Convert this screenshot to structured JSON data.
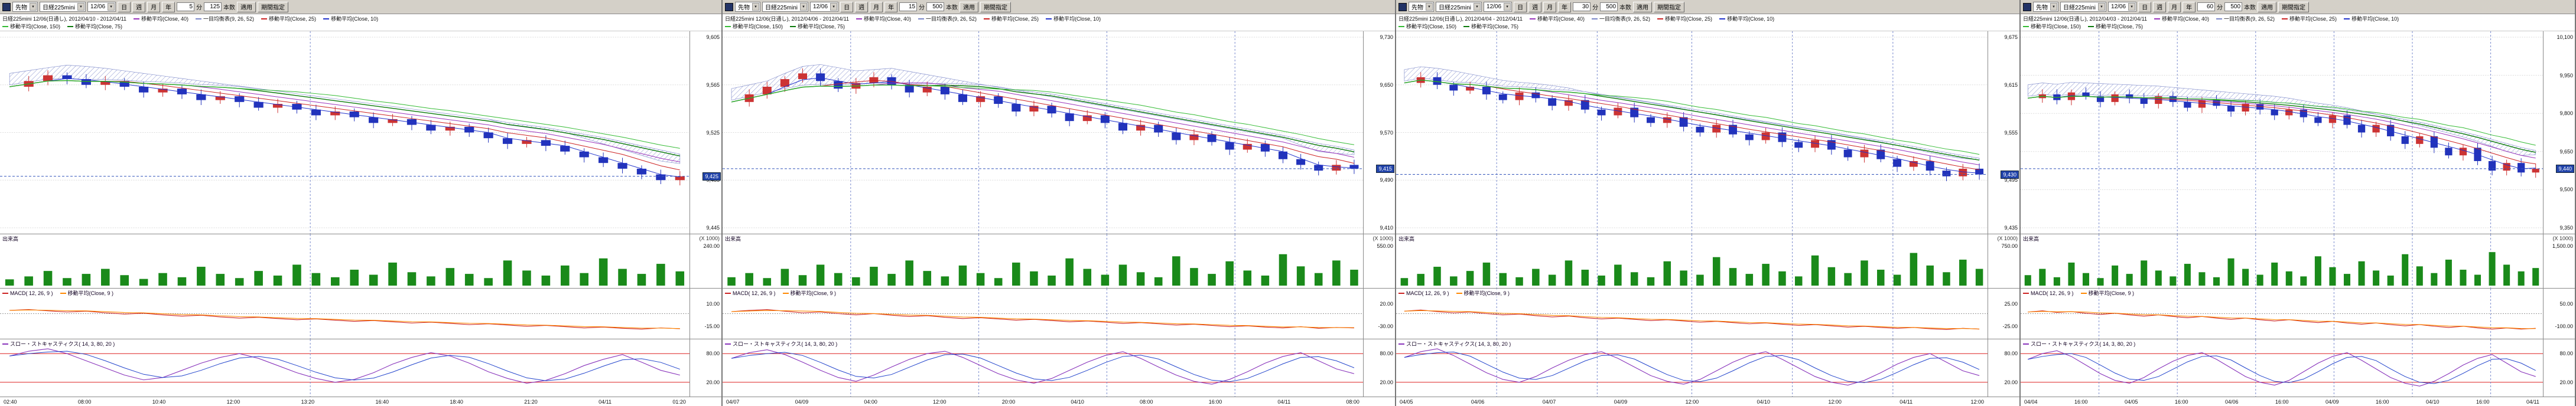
{
  "toolbar_labels": {
    "day": "日",
    "week": "週",
    "month": "月",
    "year": "年",
    "minute_suffix": "分",
    "bars_suffix": "本数",
    "apply": "適用",
    "range": "期間指定"
  },
  "colors": {
    "up_candle": "#cc3333",
    "down_candle": "#2233bb",
    "ma_short": "#2233cc",
    "ma_mid": "#cc2222",
    "ma_xlong": "#9933bb",
    "ma_long": "#0b7a0b",
    "ma_long2": "#33bb33",
    "cloud": "#7a86c8",
    "volume_bar": "#1a8a1a",
    "macd_line": "#cc2222",
    "macd_signal": "#ff8800",
    "stoch_k": "#8833bb",
    "stoch_d": "#2244cc",
    "threshold": "#dd2222",
    "grid": "#c8c8c8",
    "divider": "#7788cc",
    "last_price_line": "#3355bb",
    "badge_bg": "#2244aa",
    "badge_text": "#ffffff"
  },
  "panels": [
    {
      "toolbar": {
        "category": "先物",
        "instrument": "日経225mini",
        "contract": "12/06",
        "minute_value": "5",
        "bars_value": "125"
      },
      "legend_line1": [
        {
          "text": "日経225mini 12/06(日通し), 2012/04/10 - 2012/04/11",
          "color": null
        },
        {
          "text": "移動平均(Close, 40)",
          "color": "#9933bb"
        },
        {
          "text": "一目均衡表(9, 26, 52)",
          "color": "#7a86c8"
        },
        {
          "text": "移動平均(Close, 25)",
          "color": "#cc2222"
        },
        {
          "text": "移動平均(Close, 10)",
          "color": "#2233cc"
        }
      ],
      "legend_line2": [
        {
          "text": "移動平均(Close, 150)",
          "color": "#33bb33"
        },
        {
          "text": "移動平均(Close, 75)",
          "color": "#0b7a0b"
        }
      ],
      "sections": {
        "volume_label": "出来高"
      },
      "macd_labels": [
        {
          "text": "MACD( 12, 26, 9 )",
          "color": "#cc2222"
        },
        {
          "text": "移動平均(Close, 9 )",
          "color": "#ff8800"
        }
      ],
      "stoch_labels": [
        {
          "text": "スロー・ストキャスティクス( 14, 3, 80, 20 )",
          "color": "#8833bb"
        }
      ],
      "price_axis": {
        "ticks": [
          "9,605",
          "9,565",
          "9,525",
          "9,485",
          "9,445"
        ],
        "badge": "9,425"
      },
      "volume_axis": {
        "unit": "(X 1000)",
        "ticks": [
          "240.00"
        ]
      },
      "macd_axis": {
        "ticks": [
          "10.00",
          "-15.00"
        ]
      },
      "stoch_axis": {
        "ticks": [
          "80.00",
          "20.00"
        ]
      },
      "x_labels": [
        "02:40",
        "08:00",
        "10:40",
        "12:00",
        "13:20",
        "16:40",
        "18:40",
        "21:20",
        "04/11",
        "01:20"
      ],
      "day_dividers": [
        0.45
      ],
      "series": {
        "close": [
          74,
          77,
          80,
          78,
          75,
          77,
          74,
          71,
          73,
          70,
          67,
          69,
          66,
          63,
          65,
          62,
          59,
          61,
          58,
          55,
          57,
          54,
          51,
          53,
          50,
          47,
          44,
          46,
          43,
          40,
          37,
          34,
          31,
          28,
          25,
          27
        ],
        "volume": [
          15,
          22,
          35,
          18,
          28,
          40,
          25,
          16,
          30,
          20,
          45,
          28,
          18,
          35,
          24,
          50,
          30,
          20,
          38,
          26,
          55,
          32,
          22,
          42,
          28,
          18,
          60,
          36,
          24,
          48,
          30,
          65,
          40,
          28,
          52,
          34
        ],
        "macd": [
          58,
          60,
          57,
          54,
          56,
          52,
          49,
          51,
          47,
          44,
          46,
          42,
          39,
          41,
          38,
          35,
          37,
          34,
          31,
          33,
          30,
          27,
          29,
          26,
          23,
          25,
          22,
          19,
          21,
          18,
          15,
          17,
          14,
          12,
          15,
          13
        ],
        "stoch": [
          75,
          85,
          90,
          80,
          65,
          50,
          35,
          25,
          30,
          45,
          60,
          72,
          80,
          70,
          55,
          40,
          28,
          20,
          26,
          40,
          58,
          72,
          82,
          75,
          60,
          42,
          28,
          18,
          24,
          38,
          55,
          68,
          78,
          62,
          45,
          35
        ]
      }
    },
    {
      "toolbar": {
        "category": "先物",
        "instrument": "日経225mini",
        "contract": "12/06",
        "minute_value": "15",
        "bars_value": "500"
      },
      "legend_line1": [
        {
          "text": "日経225mini 12/06(日通し), 2012/04/06 - 2012/04/11",
          "color": null
        },
        {
          "text": "移動平均(Close, 40)",
          "color": "#9933bb"
        },
        {
          "text": "一目均衡表(9, 26, 52)",
          "color": "#7a86c8"
        },
        {
          "text": "移動平均(Close, 25)",
          "color": "#cc2222"
        },
        {
          "text": "移動平均(Close, 10)",
          "color": "#2233cc"
        }
      ],
      "legend_line2": [
        {
          "text": "移動平均(Close, 150)",
          "color": "#33bb33"
        },
        {
          "text": "移動平均(Close, 75)",
          "color": "#0b7a0b"
        }
      ],
      "sections": {
        "volume_label": "出来高"
      },
      "macd_labels": [
        {
          "text": "MACD( 12, 26, 9 )",
          "color": "#cc2222"
        },
        {
          "text": "移動平均(Close, 9 )",
          "color": "#ff8800"
        }
      ],
      "stoch_labels": [
        {
          "text": "スロー・ストキャスティクス( 14, 3, 80, 20 )",
          "color": "#8833bb"
        }
      ],
      "price_axis": {
        "ticks": [
          "9,730",
          "9,650",
          "9,570",
          "9,490",
          "9,410"
        ],
        "badge": "9,415"
      },
      "volume_axis": {
        "unit": "(X 1000)",
        "ticks": [
          "550.00"
        ]
      },
      "macd_axis": {
        "ticks": [
          "20.00",
          "-30.00"
        ]
      },
      "stoch_axis": {
        "ticks": [
          "80.00",
          "20.00"
        ]
      },
      "x_labels": [
        "04/07",
        "04/09",
        "04:00",
        "12:00",
        "20:00",
        "04/10",
        "08:00",
        "16:00",
        "04/11",
        "08:00"
      ],
      "day_dividers": [
        0.2,
        0.4,
        0.6,
        0.8
      ],
      "series": {
        "close": [
          66,
          70,
          74,
          78,
          81,
          77,
          73,
          76,
          79,
          75,
          71,
          74,
          70,
          66,
          69,
          65,
          61,
          64,
          60,
          56,
          59,
          55,
          51,
          54,
          50,
          46,
          49,
          45,
          41,
          44,
          40,
          36,
          33,
          30,
          33,
          31
        ],
        "volume": [
          20,
          30,
          18,
          40,
          25,
          50,
          30,
          20,
          45,
          28,
          60,
          35,
          22,
          48,
          30,
          18,
          55,
          34,
          24,
          65,
          40,
          26,
          50,
          32,
          20,
          70,
          42,
          28,
          58,
          36,
          24,
          75,
          46,
          30,
          60,
          38
        ],
        "macd": [
          55,
          58,
          60,
          56,
          52,
          54,
          50,
          47,
          50,
          46,
          43,
          45,
          41,
          38,
          40,
          37,
          34,
          36,
          33,
          30,
          32,
          29,
          26,
          28,
          25,
          22,
          24,
          21,
          18,
          20,
          17,
          15,
          18,
          14,
          16,
          15
        ],
        "stoch": [
          70,
          82,
          88,
          78,
          62,
          45,
          30,
          22,
          35,
          52,
          68,
          80,
          85,
          72,
          55,
          38,
          25,
          18,
          28,
          45,
          62,
          76,
          84,
          70,
          52,
          35,
          22,
          16,
          26,
          42,
          60,
          74,
          82,
          65,
          48,
          38
        ]
      }
    },
    {
      "toolbar": {
        "category": "先物",
        "instrument": "日経225mini",
        "contract": "12/06",
        "minute_value": "30",
        "bars_value": "500"
      },
      "legend_line1": [
        {
          "text": "日経225mini 12/06(日通し), 2012/04/04 - 2012/04/11",
          "color": null
        },
        {
          "text": "移動平均(Close, 40)",
          "color": "#9933bb"
        },
        {
          "text": "一目均衡表(9, 26, 52)",
          "color": "#7a86c8"
        },
        {
          "text": "移動平均(Close, 25)",
          "color": "#cc2222"
        },
        {
          "text": "移動平均(Close, 10)",
          "color": "#2233cc"
        }
      ],
      "legend_line2": [
        {
          "text": "移動平均(Close, 150)",
          "color": "#33bb33"
        },
        {
          "text": "移動平均(Close, 75)",
          "color": "#0b7a0b"
        }
      ],
      "sections": {
        "volume_label": "出来高"
      },
      "macd_labels": [
        {
          "text": "MACD( 12, 26, 9 )",
          "color": "#cc2222"
        },
        {
          "text": "移動平均(Close, 9 )",
          "color": "#ff8800"
        }
      ],
      "stoch_labels": [
        {
          "text": "スロー・ストキャスティクス( 14, 3, 80, 20 )",
          "color": "#8833bb"
        }
      ],
      "price_axis": {
        "ticks": [
          "9,675",
          "9,615",
          "9,555",
          "9,495",
          "9,435"
        ],
        "badge": "9,430"
      },
      "volume_axis": {
        "unit": "(X 1000)",
        "ticks": [
          "750.00"
        ]
      },
      "macd_axis": {
        "ticks": [
          "25.00",
          "-25.00"
        ]
      },
      "stoch_axis": {
        "ticks": [
          "80.00",
          "20.00"
        ]
      },
      "x_labels": [
        "04/05",
        "04/06",
        "04/07",
        "04/09",
        "12:00",
        "04/10",
        "12:00",
        "04/11",
        "12:00"
      ],
      "day_dividers": [
        0.17,
        0.34,
        0.5,
        0.67,
        0.84
      ],
      "series": {
        "close": [
          76,
          79,
          75,
          72,
          74,
          70,
          67,
          71,
          68,
          64,
          67,
          62,
          59,
          63,
          58,
          55,
          58,
          53,
          50,
          54,
          49,
          46,
          50,
          45,
          42,
          46,
          41,
          37,
          41,
          36,
          32,
          35,
          30,
          27,
          31,
          28
        ],
        "volume": [
          18,
          28,
          45,
          22,
          35,
          55,
          30,
          20,
          40,
          26,
          60,
          38,
          24,
          50,
          32,
          20,
          58,
          36,
          26,
          68,
          42,
          28,
          52,
          34,
          22,
          72,
          44,
          30,
          60,
          38,
          26,
          78,
          48,
          32,
          62,
          40
        ],
        "macd": [
          56,
          59,
          55,
          52,
          54,
          50,
          47,
          49,
          45,
          42,
          44,
          40,
          37,
          39,
          36,
          33,
          35,
          32,
          29,
          31,
          28,
          25,
          27,
          24,
          21,
          23,
          20,
          17,
          19,
          16,
          14,
          16,
          13,
          11,
          14,
          12
        ],
        "stoch": [
          72,
          84,
          90,
          76,
          58,
          40,
          26,
          20,
          32,
          50,
          66,
          78,
          84,
          70,
          52,
          34,
          22,
          16,
          26,
          44,
          62,
          76,
          84,
          68,
          50,
          32,
          20,
          14,
          24,
          40,
          58,
          72,
          80,
          62,
          44,
          34
        ]
      }
    },
    {
      "toolbar": {
        "category": "先物",
        "instrument": "日経225mini",
        "contract": "12/06",
        "minute_value": "60",
        "bars_value": "500"
      },
      "legend_line1": [
        {
          "text": "日経225mini 12/06(日通し), 2012/04/03 - 2012/04/11",
          "color": null
        },
        {
          "text": "移動平均(Close, 40)",
          "color": "#9933bb"
        },
        {
          "text": "一目均衡表(9, 26, 52)",
          "color": "#7a86c8"
        },
        {
          "text": "移動平均(Close, 25)",
          "color": "#cc2222"
        },
        {
          "text": "移動平均(Close, 10)",
          "color": "#2233cc"
        }
      ],
      "legend_line2": [
        {
          "text": "移動平均(Close, 150)",
          "color": "#33bb33"
        },
        {
          "text": "移動平均(Close, 75)",
          "color": "#0b7a0b"
        }
      ],
      "sections": {
        "volume_label": "出来高"
      },
      "macd_labels": [
        {
          "text": "MACD( 12, 26, 9 )",
          "color": "#cc2222"
        },
        {
          "text": "移動平均(Close, 9 )",
          "color": "#ff8800"
        }
      ],
      "stoch_labels": [
        {
          "text": "スロー・ストキャスティクス( 14, 3, 80, 20 )",
          "color": "#8833bb"
        }
      ],
      "price_axis": {
        "ticks": [
          "10,100",
          "9,950",
          "9,800",
          "9,650",
          "9,500",
          "9,350"
        ],
        "badge": "9,440"
      },
      "volume_axis": {
        "unit": "(X 1000)",
        "ticks": [
          "1,500.00"
        ]
      },
      "macd_axis": {
        "ticks": [
          "50.00",
          "-100.00"
        ]
      },
      "stoch_axis": {
        "ticks": [
          "80.00",
          "20.00"
        ]
      },
      "x_labels": [
        "04/04",
        "16:00",
        "04/05",
        "16:00",
        "04/06",
        "16:00",
        "04/09",
        "16:00",
        "04/10",
        "16:00",
        "04/11"
      ],
      "day_dividers": [
        0.15,
        0.3,
        0.45,
        0.6,
        0.75,
        0.9
      ],
      "series": {
        "close": [
          68,
          70,
          67,
          71,
          69,
          66,
          70,
          68,
          65,
          69,
          66,
          63,
          67,
          64,
          61,
          65,
          62,
          59,
          62,
          58,
          55,
          59,
          54,
          50,
          54,
          48,
          44,
          48,
          42,
          38,
          42,
          35,
          30,
          34,
          29,
          31
        ],
        "volume": [
          25,
          40,
          20,
          55,
          30,
          18,
          48,
          28,
          60,
          36,
          22,
          52,
          32,
          20,
          65,
          40,
          26,
          55,
          34,
          22,
          70,
          44,
          28,
          58,
          36,
          24,
          75,
          46,
          30,
          62,
          38,
          26,
          80,
          50,
          34,
          42
        ],
        "macd": [
          54,
          57,
          53,
          55,
          51,
          48,
          51,
          47,
          44,
          47,
          43,
          40,
          43,
          39,
          36,
          39,
          35,
          32,
          35,
          31,
          28,
          31,
          27,
          24,
          27,
          23,
          20,
          23,
          19,
          16,
          19,
          15,
          12,
          15,
          12,
          14
        ],
        "stoch": [
          68,
          80,
          86,
          74,
          56,
          38,
          24,
          18,
          30,
          48,
          64,
          76,
          82,
          68,
          50,
          32,
          20,
          14,
          24,
          42,
          60,
          74,
          82,
          66,
          48,
          30,
          18,
          12,
          22,
          38,
          56,
          70,
          78,
          60,
          42,
          32
        ]
      }
    }
  ]
}
